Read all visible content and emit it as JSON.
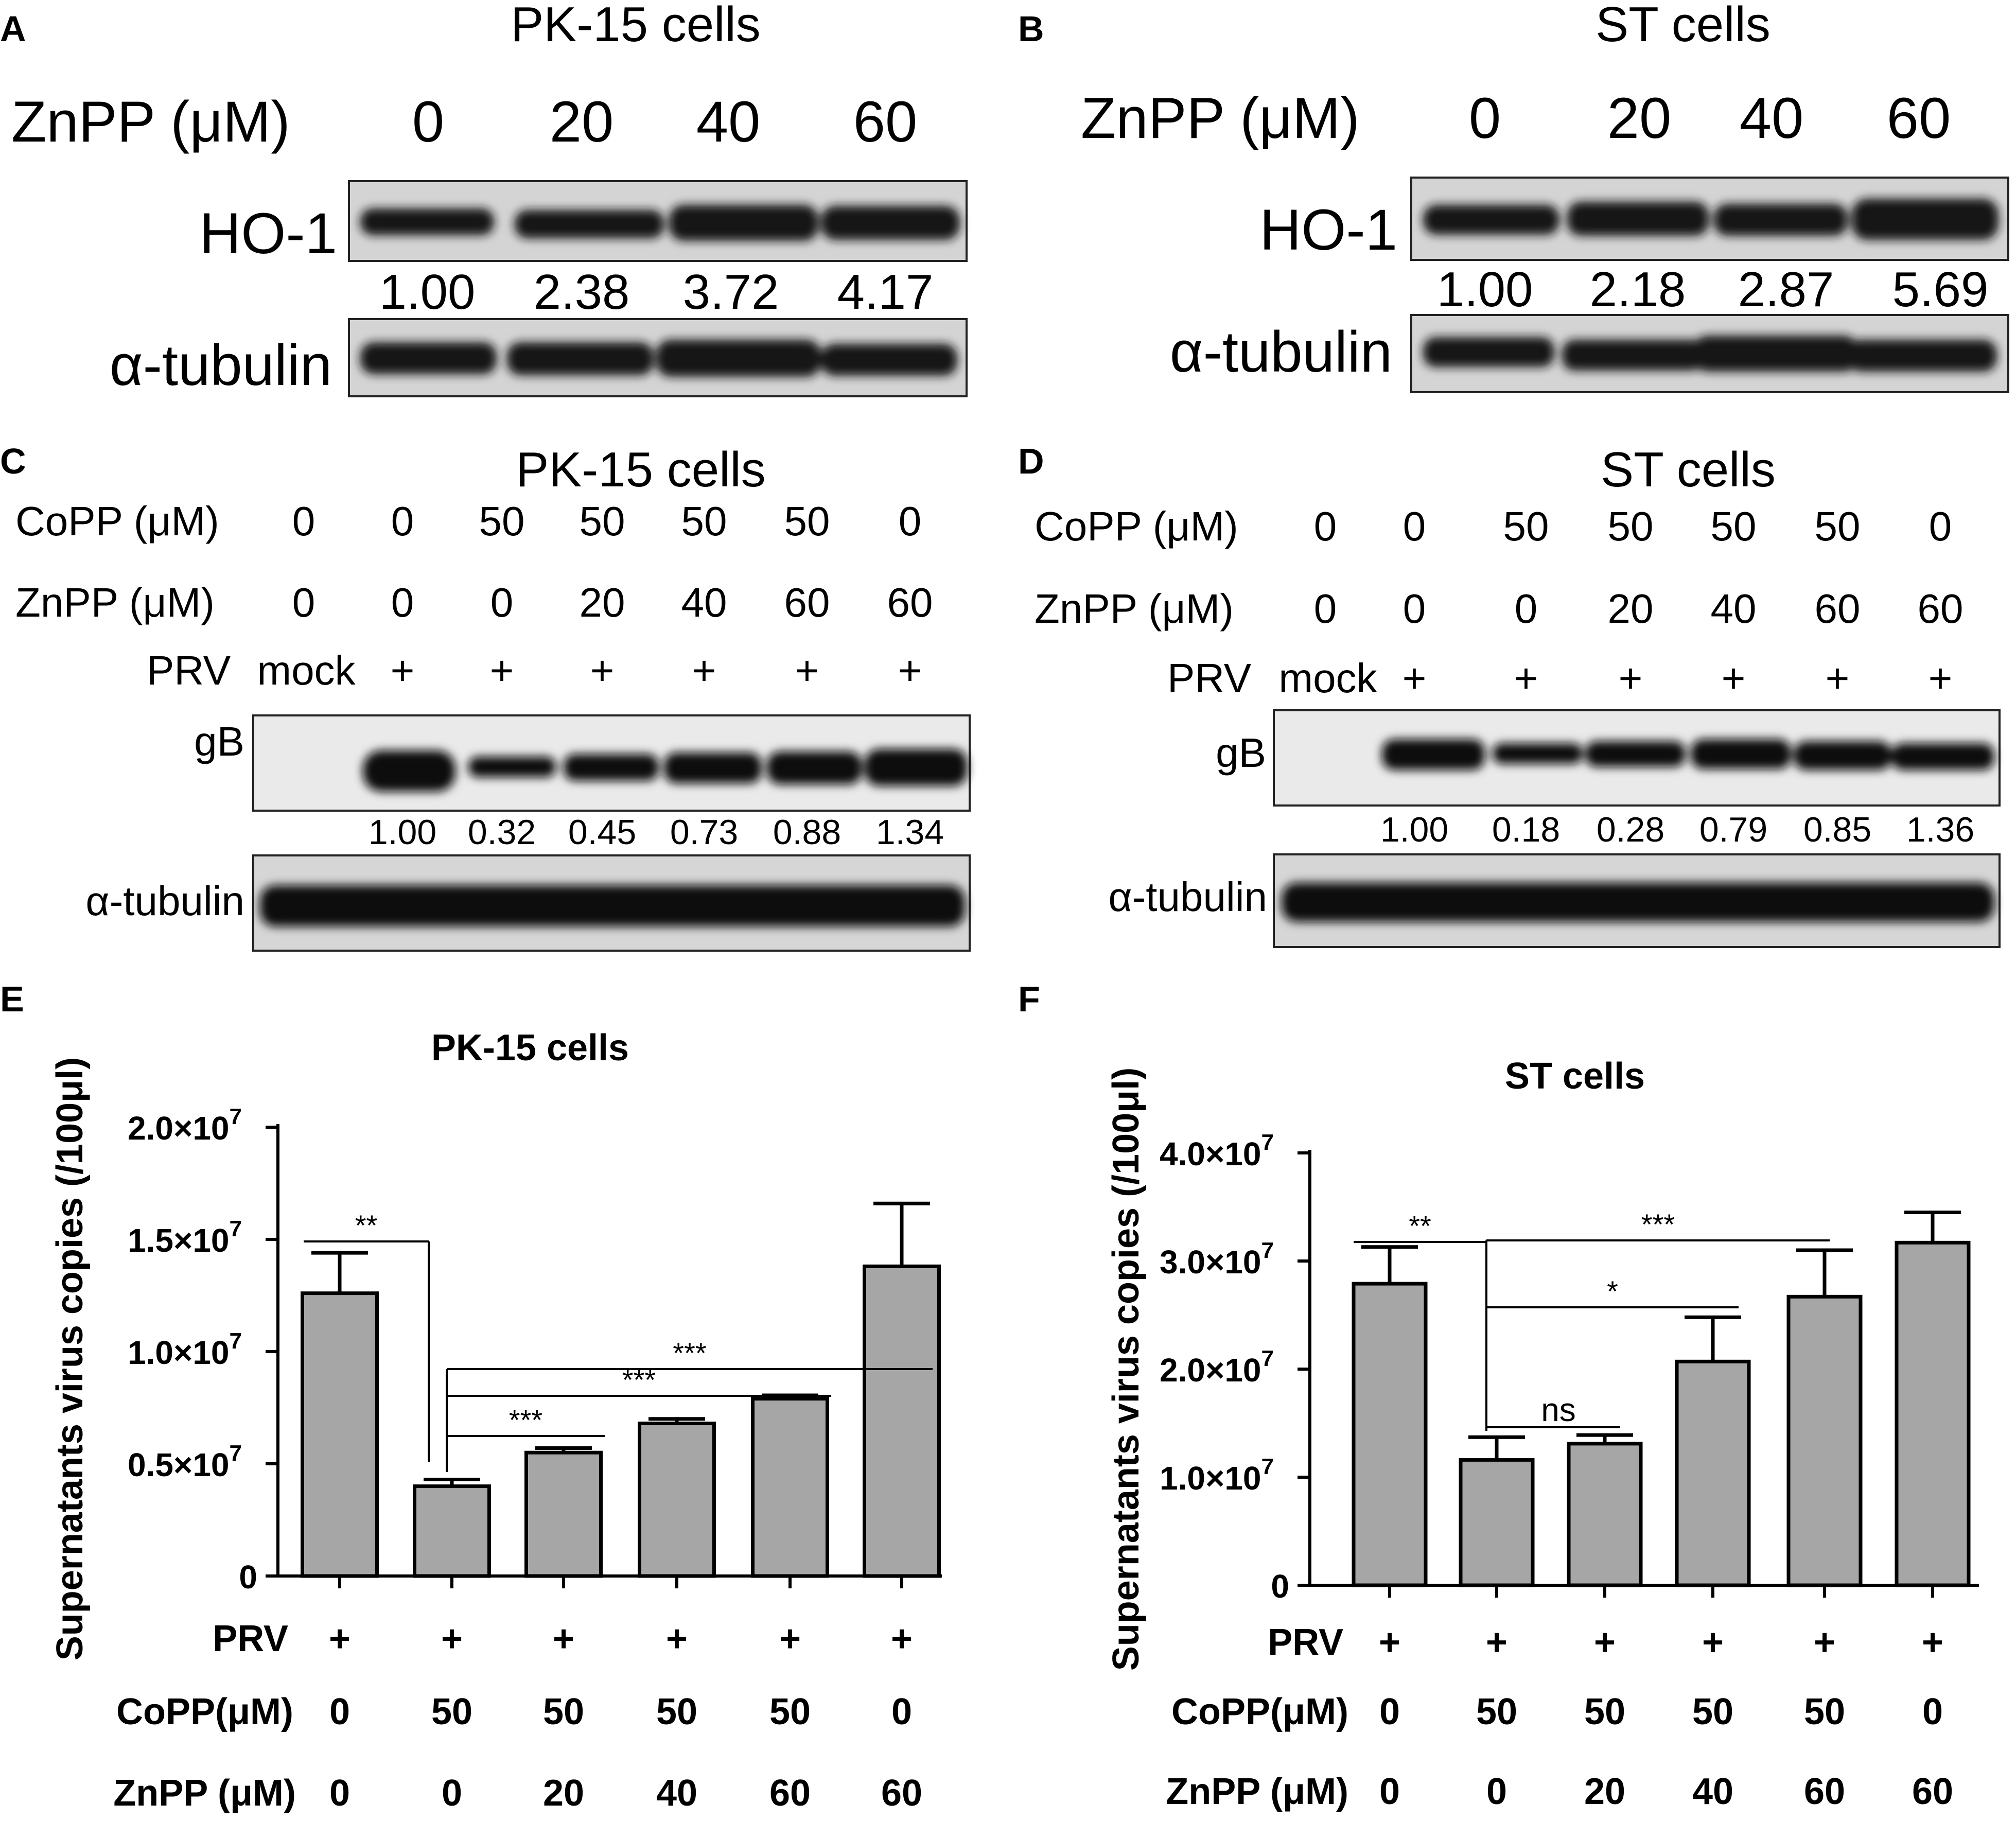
{
  "panels": {
    "A": {
      "letter": "A",
      "title": "PK-15 cells",
      "znpp_label": "ZnPP (μM)",
      "znpp_values": [
        "0",
        "20",
        "40",
        "60"
      ],
      "protein_label": "HO-1",
      "quant": [
        "1.00",
        "2.38",
        "3.72",
        "4.17"
      ],
      "loading_label": "α-tubulin"
    },
    "B": {
      "letter": "B",
      "title": "ST cells",
      "znpp_label": "ZnPP (μM)",
      "znpp_values": [
        "0",
        "20",
        "40",
        "60"
      ],
      "protein_label": "HO-1",
      "quant": [
        "1.00",
        "2.18",
        "2.87",
        "5.69"
      ],
      "loading_label": "α-tubulin"
    },
    "C": {
      "letter": "C",
      "title": "PK-15 cells",
      "copp_label": "CoPP (μM)",
      "copp_values": [
        "0",
        "0",
        "50",
        "50",
        "50",
        "50",
        "0"
      ],
      "znpp_label": "ZnPP (μM)",
      "znpp_values": [
        "0",
        "0",
        "0",
        "20",
        "40",
        "60",
        "60"
      ],
      "prv_label": "PRV",
      "prv_values": [
        "mock",
        "+",
        "+",
        "+",
        "+",
        "+",
        "+"
      ],
      "protein_label": "gB",
      "quant": [
        "1.00",
        "0.32",
        "0.45",
        "0.73",
        "0.88",
        "1.34"
      ],
      "loading_label": "α-tubulin"
    },
    "D": {
      "letter": "D",
      "title": "ST cells",
      "copp_label": "CoPP (μM)",
      "copp_values": [
        "0",
        "0",
        "50",
        "50",
        "50",
        "50",
        "0"
      ],
      "znpp_label": "ZnPP (μM)",
      "znpp_values": [
        "0",
        "0",
        "0",
        "20",
        "40",
        "60",
        "60"
      ],
      "prv_label": "PRV",
      "prv_values": [
        "mock",
        "+",
        "+",
        "+",
        "+",
        "+",
        "+"
      ],
      "protein_label": "gB",
      "quant": [
        "1.00",
        "0.18",
        "0.28",
        "0.79",
        "0.85",
        "1.36"
      ],
      "loading_label": "α-tubulin"
    },
    "E": {
      "letter": "E",
      "prv_label": "PRV",
      "copp_label": "CoPP(μM)",
      "znpp_label": "ZnPP (μM)",
      "prv_values": [
        "+",
        "+",
        "+",
        "+",
        "+",
        "+"
      ],
      "copp_values": [
        "0",
        "50",
        "50",
        "50",
        "50",
        "0"
      ],
      "znpp_values": [
        "0",
        "0",
        "20",
        "40",
        "60",
        "60"
      ]
    },
    "F": {
      "letter": "F",
      "prv_label": "PRV",
      "copp_label": "CoPP(μM)",
      "znpp_label": "ZnPP (μM)",
      "prv_values": [
        "+",
        "+",
        "+",
        "+",
        "+",
        "+"
      ],
      "copp_values": [
        "0",
        "50",
        "50",
        "50",
        "50",
        "0"
      ],
      "znpp_values": [
        "0",
        "0",
        "20",
        "40",
        "60",
        "60"
      ]
    }
  },
  "chart_data": [
    {
      "id": "E",
      "type": "bar",
      "title": "PK-15 cells",
      "ylabel": "Supernatants virus copies (/100μl)",
      "ylim": [
        0,
        20000000
      ],
      "yticks": [
        {
          "value": 0,
          "label": "0"
        },
        {
          "value": 5000000,
          "label": "0.5×10",
          "exp": "7"
        },
        {
          "value": 10000000,
          "label": "1.0×10",
          "exp": "7"
        },
        {
          "value": 15000000,
          "label": "1.5×10",
          "exp": "7"
        },
        {
          "value": 20000000,
          "label": "2.0×10",
          "exp": "7"
        }
      ],
      "values": [
        12600000,
        4000000,
        5500000,
        6800000,
        7900000,
        13800000
      ],
      "errors": [
        1800000,
        300000,
        200000,
        200000,
        150000,
        2800000
      ],
      "color": "#a6a6a6",
      "significance": [
        {
          "from": 0,
          "to": 1,
          "label": "**"
        },
        {
          "from": 1,
          "to": 2,
          "label": "***"
        },
        {
          "from": 1,
          "to": 4,
          "label": "***"
        },
        {
          "from": 1,
          "to": 5,
          "label": "***"
        }
      ]
    },
    {
      "id": "F",
      "type": "bar",
      "title": "ST cells",
      "ylabel": "Supernatants virus copies (/100μl)",
      "ylim": [
        0,
        40000000
      ],
      "yticks": [
        {
          "value": 0,
          "label": "0"
        },
        {
          "value": 10000000,
          "label": "1.0×10",
          "exp": "7"
        },
        {
          "value": 20000000,
          "label": "2.0×10",
          "exp": "7"
        },
        {
          "value": 30000000,
          "label": "3.0×10",
          "exp": "7"
        },
        {
          "value": 40000000,
          "label": "4.0×10",
          "exp": "7"
        }
      ],
      "values": [
        27900000,
        11600000,
        13100000,
        20700000,
        26700000,
        31700000
      ],
      "errors": [
        3400000,
        2100000,
        800000,
        4100000,
        4300000,
        2800000
      ],
      "color": "#a6a6a6",
      "significance": [
        {
          "from": 0,
          "to": 1,
          "label": "**"
        },
        {
          "from": 1,
          "to": 2,
          "label": "ns"
        },
        {
          "from": 1,
          "to": 3,
          "label": "*"
        },
        {
          "from": 1,
          "to": 5,
          "label": "***"
        }
      ]
    }
  ]
}
